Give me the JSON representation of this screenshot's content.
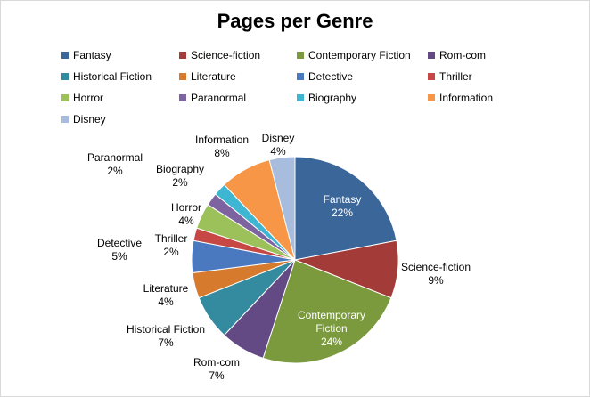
{
  "chart_data": {
    "type": "pie",
    "title": "Pages per Genre",
    "legend_position": "top",
    "series": [
      {
        "name": "Fantasy",
        "label": [
          "Fantasy"
        ],
        "value": 22,
        "color": "#3a6699"
      },
      {
        "name": "Science-fiction",
        "label": [
          "Science-fiction"
        ],
        "value": 9,
        "color": "#a33b38"
      },
      {
        "name": "Contemporary Fiction",
        "label": [
          "Contemporary",
          "Fiction"
        ],
        "value": 24,
        "color": "#7b9a3e"
      },
      {
        "name": "Rom-com",
        "label": [
          "Rom-com"
        ],
        "value": 7,
        "color": "#634a85"
      },
      {
        "name": "Historical Fiction",
        "label": [
          "Historical Fiction"
        ],
        "value": 7,
        "color": "#348a9f"
      },
      {
        "name": "Literature",
        "label": [
          "Literature"
        ],
        "value": 4,
        "color": "#d67a2e"
      },
      {
        "name": "Detective",
        "label": [
          "Detective"
        ],
        "value": 5,
        "color": "#4a79c0"
      },
      {
        "name": "Thriller",
        "label": [
          "Thriller"
        ],
        "value": 2,
        "color": "#c64744"
      },
      {
        "name": "Horror",
        "label": [
          "Horror"
        ],
        "value": 4,
        "color": "#9dc15a"
      },
      {
        "name": "Paranormal",
        "label": [
          "Paranormal"
        ],
        "value": 2,
        "color": "#7e63a1"
      },
      {
        "name": "Biography",
        "label": [
          "Biography"
        ],
        "value": 2,
        "color": "#3fb6d1"
      },
      {
        "name": "Information",
        "label": [
          "Information"
        ],
        "value": 8,
        "color": "#f79646"
      },
      {
        "name": "Disney",
        "label": [
          "Disney"
        ],
        "value": 4,
        "color": "#a8bddd"
      }
    ]
  }
}
